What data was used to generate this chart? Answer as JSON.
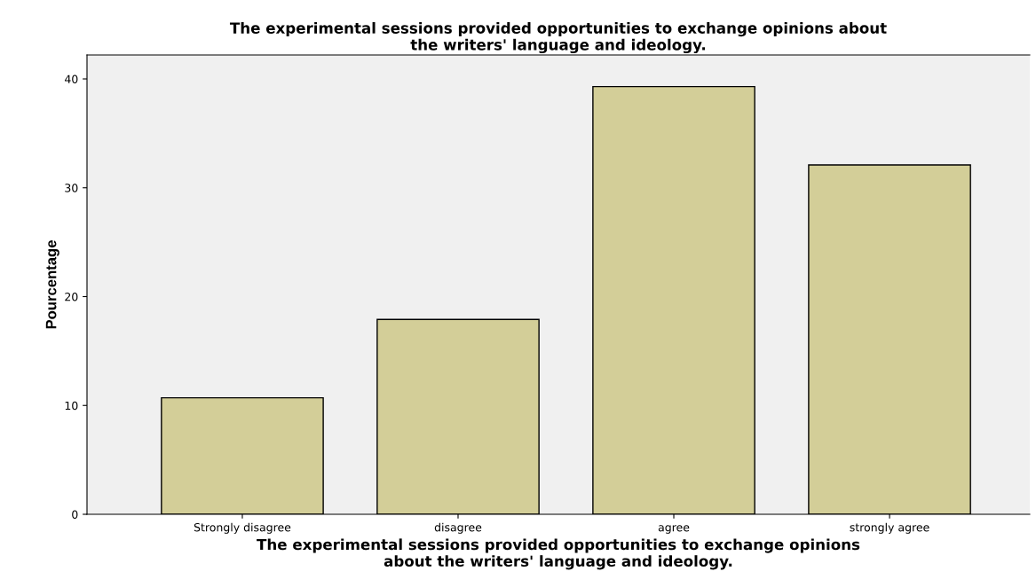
{
  "chart_data": {
    "type": "bar",
    "title": "The experimental sessions provided opportunities to exchange opinions about\nthe writers' language and ideology.",
    "xlabel": "The experimental sessions provided opportunities to exchange opinions\nabout the writers' language and ideology.",
    "ylabel": "Pourcentage",
    "categories": [
      "Strongly disagree",
      "disagree",
      "agree",
      "strongly agree"
    ],
    "values": [
      10.7,
      17.9,
      39.3,
      32.1
    ],
    "color": "#d3ce98",
    "ylim": [
      0,
      42.2
    ],
    "yticks": [
      0,
      10,
      20,
      30,
      40
    ],
    "grid": false
  }
}
